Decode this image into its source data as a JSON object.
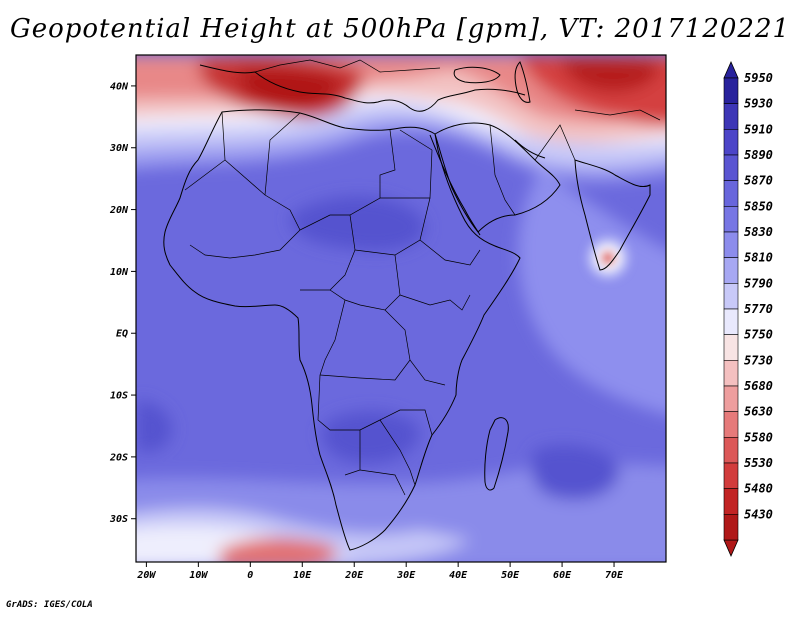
{
  "title": "Geopotential Height at 500hPa [gpm], VT: 2017120221",
  "footer": "GrADS: IGES/COLA",
  "variable": "500hPa geopotential height",
  "units": "gpm",
  "valid_time": "2017120221",
  "x_axis": {
    "ticks": [
      "20W",
      "10W",
      "0",
      "10E",
      "20E",
      "30E",
      "40E",
      "50E",
      "60E",
      "70E"
    ],
    "range_deg": [
      -22,
      80
    ]
  },
  "y_axis": {
    "ticks": [
      "40N",
      "30N",
      "20N",
      "10N",
      "EQ",
      "10S",
      "20S",
      "30S"
    ],
    "range_deg": [
      -37,
      45
    ]
  },
  "colorbar": {
    "levels": [
      "5950",
      "5930",
      "5910",
      "5890",
      "5870",
      "5850",
      "5830",
      "5810",
      "5790",
      "5770",
      "5750",
      "5730",
      "5680",
      "5630",
      "5580",
      "5530",
      "5480",
      "5430"
    ],
    "colors": [
      "#28229c",
      "#3d36b6",
      "#4c45c8",
      "#5a55d2",
      "#6866dc",
      "#7776e4",
      "#8c8cec",
      "#a7a8f3",
      "#c8c9f8",
      "#e9e9fd",
      "#f8e4e4",
      "#f4c0c0",
      "#ee9e9e",
      "#e67a7a",
      "#dc5858",
      "#d23c3c",
      "#c22424",
      "#b01818"
    ]
  },
  "map_features": {
    "high_center": "Arabian Sea isolated low",
    "labels": []
  }
}
